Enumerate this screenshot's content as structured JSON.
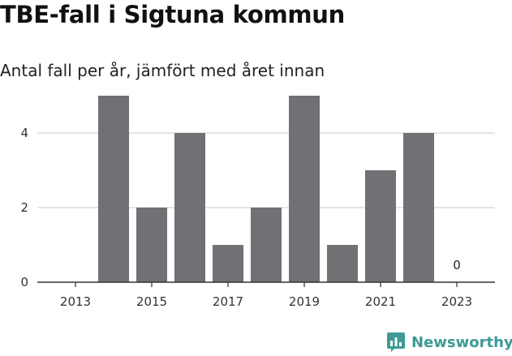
{
  "title": "TBE-fall i Sigtuna kommun",
  "subtitle": "Antal fall per år, jämfört med året innan",
  "brand": {
    "name": "Newsworthy",
    "color": "#3d9a96",
    "icon": "newsworthy-logo-icon"
  },
  "colors": {
    "bar": "#717075",
    "grid": "#dcdcdc",
    "axis": "#333333"
  },
  "chart_data": {
    "type": "bar",
    "categories": [
      "2013",
      "2014",
      "2015",
      "2016",
      "2017",
      "2018",
      "2019",
      "2020",
      "2021",
      "2022",
      "2023"
    ],
    "values": [
      0,
      5,
      2,
      4,
      1,
      2,
      5,
      1,
      3,
      4,
      0
    ],
    "x_tick_labels": [
      "2013",
      "2015",
      "2017",
      "2019",
      "2021",
      "2023"
    ],
    "y_ticks": [
      0,
      2,
      4
    ],
    "ylim": [
      0,
      5
    ],
    "grid": true,
    "xlabel": "",
    "ylabel": "",
    "data_labels": [
      {
        "category": "2023",
        "text": "0"
      }
    ]
  }
}
